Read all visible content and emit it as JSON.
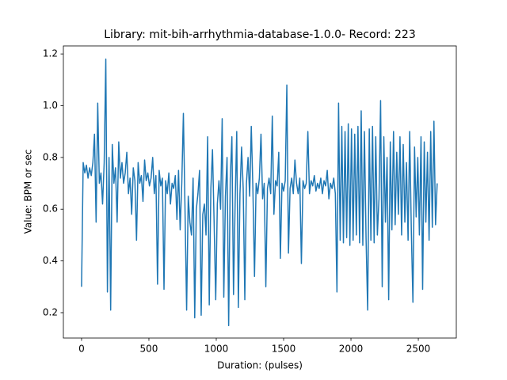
{
  "chart_data": {
    "type": "line",
    "title": "Library: mit-bih-arrhythmia-database-1.0.0- Record: 223",
    "xlabel": "Duration: (pulses)",
    "ylabel": "Value: BPM or sec",
    "xlim": [
      -135,
      2782
    ],
    "ylim": [
      0.102,
      1.231
    ],
    "xticks": [
      0,
      500,
      1000,
      1500,
      2000,
      2500
    ],
    "yticks": [
      0.2,
      0.4,
      0.6,
      0.8,
      {
        "value": 1,
        "label": "1.0"
      },
      1.2
    ],
    "series": [
      {
        "color": "#1f77b4",
        "x": [
          0,
          12,
          24,
          36,
          48,
          60,
          72,
          84,
          96,
          108,
          120,
          132,
          144,
          156,
          168,
          180,
          192,
          204,
          216,
          228,
          240,
          252,
          264,
          276,
          288,
          300,
          312,
          324,
          336,
          348,
          360,
          372,
          384,
          396,
          408,
          420,
          432,
          444,
          456,
          468,
          480,
          492,
          504,
          516,
          528,
          540,
          552,
          564,
          576,
          588,
          600,
          612,
          624,
          636,
          648,
          660,
          672,
          684,
          696,
          708,
          720,
          732,
          744,
          756,
          768,
          780,
          792,
          804,
          816,
          828,
          840,
          852,
          864,
          876,
          888,
          900,
          912,
          924,
          936,
          948,
          960,
          972,
          984,
          996,
          1008,
          1020,
          1032,
          1044,
          1056,
          1068,
          1080,
          1092,
          1104,
          1116,
          1128,
          1140,
          1152,
          1164,
          1176,
          1188,
          1200,
          1212,
          1224,
          1236,
          1248,
          1260,
          1272,
          1284,
          1296,
          1308,
          1320,
          1332,
          1344,
          1356,
          1368,
          1380,
          1392,
          1404,
          1416,
          1428,
          1440,
          1452,
          1464,
          1476,
          1488,
          1500,
          1512,
          1524,
          1536,
          1548,
          1560,
          1572,
          1584,
          1596,
          1608,
          1620,
          1632,
          1644,
          1656,
          1668,
          1680,
          1692,
          1704,
          1716,
          1728,
          1740,
          1752,
          1764,
          1776,
          1788,
          1800,
          1812,
          1824,
          1836,
          1848,
          1860,
          1872,
          1884,
          1896,
          1908,
          1920,
          1932,
          1944,
          1956,
          1968,
          1980,
          1992,
          2004,
          2016,
          2028,
          2040,
          2052,
          2064,
          2076,
          2088,
          2100,
          2112,
          2124,
          2136,
          2148,
          2160,
          2172,
          2184,
          2196,
          2208,
          2220,
          2232,
          2244,
          2256,
          2268,
          2280,
          2292,
          2304,
          2316,
          2328,
          2340,
          2352,
          2364,
          2376,
          2388,
          2400,
          2412,
          2424,
          2436,
          2448,
          2460,
          2472,
          2484,
          2496,
          2508,
          2520,
          2532,
          2544,
          2556,
          2568,
          2580,
          2592,
          2604,
          2616,
          2628,
          2640
        ],
        "values": [
          0.3,
          0.78,
          0.74,
          0.77,
          0.72,
          0.76,
          0.73,
          0.78,
          0.89,
          0.55,
          1.01,
          0.7,
          0.74,
          0.62,
          0.78,
          1.18,
          0.28,
          0.8,
          0.21,
          0.85,
          0.7,
          0.76,
          0.55,
          0.86,
          0.72,
          0.78,
          0.7,
          0.74,
          0.82,
          0.66,
          0.72,
          0.58,
          0.76,
          0.71,
          0.48,
          0.78,
          0.7,
          0.73,
          0.63,
          0.79,
          0.71,
          0.74,
          0.69,
          0.72,
          0.8,
          0.66,
          0.73,
          0.31,
          0.75,
          0.69,
          0.72,
          0.29,
          0.71,
          0.66,
          0.74,
          0.62,
          0.7,
          0.68,
          0.73,
          0.56,
          0.75,
          0.52,
          0.7,
          0.97,
          0.6,
          0.21,
          0.65,
          0.55,
          0.5,
          0.72,
          0.18,
          0.6,
          0.66,
          0.75,
          0.19,
          0.58,
          0.62,
          0.5,
          0.88,
          0.23,
          0.68,
          0.83,
          0.55,
          0.25,
          0.62,
          0.71,
          0.6,
          0.95,
          0.26,
          0.65,
          0.8,
          0.15,
          0.72,
          0.88,
          0.27,
          0.62,
          0.9,
          0.22,
          0.66,
          0.84,
          0.68,
          0.25,
          0.7,
          0.8,
          0.65,
          0.92,
          0.68,
          0.34,
          0.7,
          0.66,
          0.72,
          0.89,
          0.64,
          0.7,
          0.3,
          0.68,
          0.72,
          0.66,
          0.96,
          0.58,
          0.71,
          0.69,
          0.82,
          0.41,
          0.7,
          0.67,
          0.71,
          1.08,
          0.43,
          0.68,
          0.72,
          0.66,
          0.79,
          0.7,
          0.66,
          0.72,
          0.39,
          0.71,
          0.68,
          0.7,
          0.9,
          0.66,
          0.71,
          0.69,
          0.73,
          0.67,
          0.7,
          0.68,
          0.72,
          0.66,
          0.71,
          0.69,
          0.75,
          0.64,
          0.7,
          0.68,
          0.72,
          0.66,
          0.28,
          1.01,
          0.48,
          0.92,
          0.47,
          0.9,
          0.49,
          0.93,
          0.46,
          0.91,
          0.48,
          0.89,
          0.5,
          0.92,
          0.47,
          0.98,
          0.46,
          0.9,
          0.49,
          0.21,
          0.91,
          0.48,
          0.92,
          0.47,
          0.88,
          0.5,
          0.64,
          1.02,
          0.3,
          0.88,
          0.55,
          0.8,
          0.25,
          0.86,
          0.52,
          0.9,
          0.54,
          0.82,
          0.58,
          0.88,
          0.5,
          0.85,
          0.55,
          0.78,
          0.48,
          0.9,
          0.52,
          0.24,
          0.84,
          0.57,
          0.8,
          0.5,
          0.88,
          0.29,
          0.86,
          0.55,
          0.82,
          0.48,
          0.9,
          0.53,
          0.94,
          0.54,
          0.7
        ]
      }
    ]
  }
}
